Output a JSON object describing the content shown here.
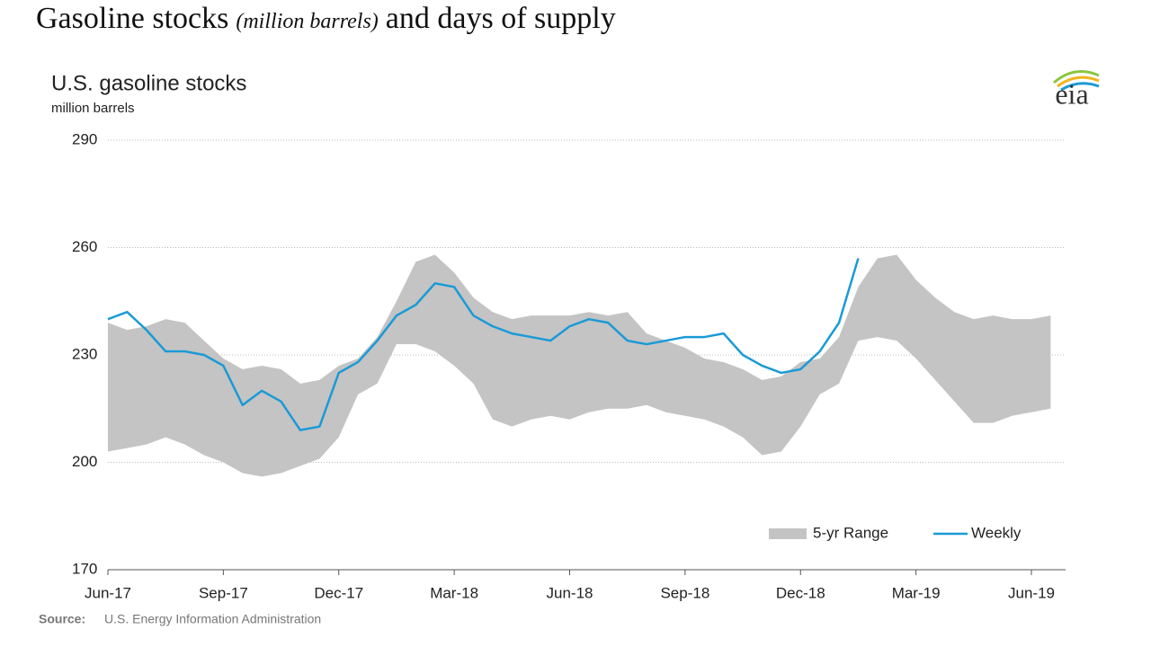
{
  "heading": {
    "main": "Gasoline stocks",
    "unit": "(million barrels)",
    "rest": "and days of supply"
  },
  "logo": "eia",
  "chart_data": {
    "type": "range-line",
    "title": "U.S. gasoline stocks",
    "subtitle": "million barrels",
    "source_label": "Source:",
    "source": "U.S. Energy Information Administration",
    "categories": [
      "Jun-17",
      null,
      null,
      null,
      null,
      null,
      "Sep-17",
      null,
      null,
      null,
      null,
      null,
      "Dec-17",
      null,
      null,
      null,
      null,
      null,
      "Mar-18",
      null,
      null,
      null,
      null,
      null,
      "Jun-18",
      null,
      null,
      null,
      null,
      null,
      "Sep-18",
      null,
      null,
      null,
      null,
      null,
      "Dec-18",
      null,
      null,
      null,
      null,
      null,
      "Mar-19",
      null,
      null,
      null,
      null,
      null,
      "Jun-19",
      null
    ],
    "ylim": [
      170,
      290
    ],
    "yticks": [
      170,
      200,
      230,
      260,
      290
    ],
    "grid": true,
    "legend": "bottom-right",
    "series": [
      {
        "name": "5-yr Range",
        "color": "#c4c4c4",
        "high": [
          239,
          237,
          238,
          240,
          239,
          234,
          229,
          226,
          227,
          226,
          222,
          223,
          227,
          229,
          235,
          245,
          256,
          258,
          253,
          246,
          242,
          240,
          241,
          241,
          241,
          242,
          241,
          242,
          236,
          234,
          232,
          229,
          228,
          226,
          223,
          224,
          228,
          229,
          235,
          249,
          257,
          258,
          251,
          246,
          242,
          240,
          241,
          240,
          240,
          241
        ],
        "low": [
          203,
          204,
          205,
          207,
          205,
          202,
          200,
          197,
          196,
          197,
          199,
          201,
          207,
          219,
          222,
          233,
          233,
          231,
          227,
          222,
          212,
          210,
          212,
          213,
          212,
          214,
          215,
          215,
          216,
          214,
          213,
          212,
          210,
          207,
          202,
          203,
          210,
          219,
          222,
          234,
          235,
          234,
          229,
          223,
          217,
          211,
          211,
          213,
          214,
          215
        ]
      },
      {
        "name": "Weekly",
        "color": "#1a9ad6",
        "values": [
          240,
          242,
          237,
          231,
          231,
          230,
          227,
          216,
          220,
          217,
          209,
          210,
          225,
          228,
          234,
          241,
          244,
          250,
          249,
          241,
          238,
          236,
          235,
          234,
          238,
          240,
          239,
          234,
          233,
          234,
          235,
          235,
          236,
          230,
          227,
          225,
          226,
          231,
          239,
          257,
          null,
          null,
          null,
          null,
          null,
          null,
          null,
          null,
          null,
          null
        ]
      }
    ]
  }
}
